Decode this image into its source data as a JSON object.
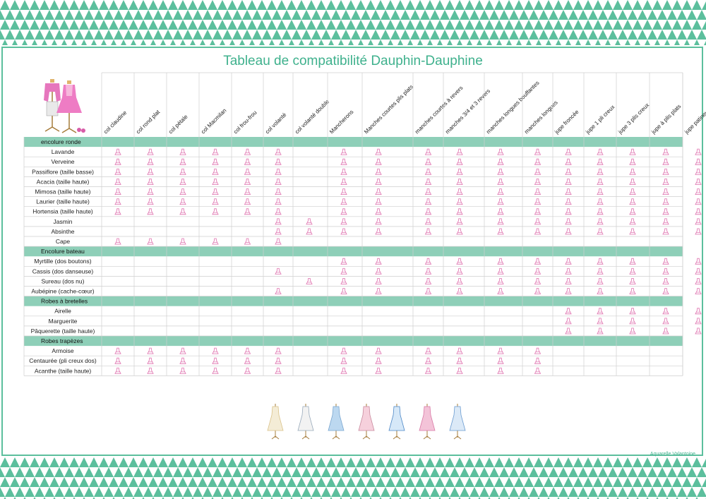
{
  "title": "Tableau de compatibilité Dauphin-Dauphine",
  "credit": "Aquarelle Valantoine",
  "colors": {
    "accent": "#5cbf9d",
    "title": "#3fb18d",
    "mark": "#e27fb6"
  },
  "columns": [
    "col claudine",
    "col rond plat",
    "col pétale",
    "col Macmilan",
    "col frou-frou",
    "col volanté",
    "col volanté double",
    "Mancherons",
    "Manches courtes plis plats",
    "manches courtes à revers",
    "manches 3/4 et 3 revers",
    "manches longues bouffantes",
    "manches longues",
    "jupe froncée",
    "jupe 1 pli creux",
    "jupe 3 plis creux",
    "jupe à plis plats",
    "jupe patineuse"
  ],
  "sections": [
    {
      "name": "encolure ronde",
      "rows": [
        {
          "label": "Lavande",
          "marks": [
            1,
            1,
            1,
            1,
            1,
            1,
            0,
            1,
            1,
            1,
            1,
            1,
            1,
            1,
            1,
            1,
            1,
            1
          ]
        },
        {
          "label": "Verveine",
          "marks": [
            1,
            1,
            1,
            1,
            1,
            1,
            0,
            1,
            1,
            1,
            1,
            1,
            1,
            1,
            1,
            1,
            1,
            1
          ]
        },
        {
          "label": "Passiflore (taille basse)",
          "marks": [
            1,
            1,
            1,
            1,
            1,
            1,
            0,
            1,
            1,
            1,
            1,
            1,
            1,
            1,
            1,
            1,
            1,
            1
          ]
        },
        {
          "label": "Acacia (taille haute)",
          "marks": [
            1,
            1,
            1,
            1,
            1,
            1,
            0,
            1,
            1,
            1,
            1,
            1,
            1,
            1,
            1,
            1,
            1,
            1
          ]
        },
        {
          "label": "Mimosa (taille haute)",
          "marks": [
            1,
            1,
            1,
            1,
            1,
            1,
            0,
            1,
            1,
            1,
            1,
            1,
            1,
            1,
            1,
            1,
            1,
            1
          ]
        },
        {
          "label": "Laurier (taille haute)",
          "marks": [
            1,
            1,
            1,
            1,
            1,
            1,
            0,
            1,
            1,
            1,
            1,
            1,
            1,
            1,
            1,
            1,
            1,
            1
          ]
        },
        {
          "label": "Hortensia (taille haute)",
          "marks": [
            1,
            1,
            1,
            1,
            1,
            1,
            0,
            1,
            1,
            1,
            1,
            1,
            1,
            1,
            1,
            1,
            1,
            1
          ]
        },
        {
          "label": "Jasmin",
          "marks": [
            0,
            0,
            0,
            0,
            0,
            1,
            1,
            1,
            1,
            1,
            1,
            1,
            1,
            1,
            1,
            1,
            1,
            1
          ]
        },
        {
          "label": "Absinthe",
          "marks": [
            0,
            0,
            0,
            0,
            0,
            1,
            1,
            1,
            1,
            1,
            1,
            1,
            1,
            1,
            1,
            1,
            1,
            1
          ]
        },
        {
          "label": "Cape",
          "marks": [
            1,
            1,
            1,
            1,
            1,
            1,
            0,
            0,
            0,
            0,
            0,
            0,
            0,
            0,
            0,
            0,
            0,
            0
          ]
        }
      ]
    },
    {
      "name": "Encolure bateau",
      "rows": [
        {
          "label": "Myrtille (dos boutons)",
          "marks": [
            0,
            0,
            0,
            0,
            0,
            0,
            0,
            1,
            1,
            1,
            1,
            1,
            1,
            1,
            1,
            1,
            1,
            1
          ]
        },
        {
          "label": "Cassis (dos danseuse)",
          "marks": [
            0,
            0,
            0,
            0,
            0,
            1,
            0,
            1,
            1,
            1,
            1,
            1,
            1,
            1,
            1,
            1,
            1,
            1
          ]
        },
        {
          "label": "Sureau (dos nu)",
          "marks": [
            0,
            0,
            0,
            0,
            0,
            0,
            1,
            1,
            1,
            1,
            1,
            1,
            1,
            1,
            1,
            1,
            1,
            1
          ]
        },
        {
          "label": "Aubépine (cache-cœur)",
          "marks": [
            0,
            0,
            0,
            0,
            0,
            1,
            0,
            1,
            1,
            1,
            1,
            1,
            1,
            1,
            1,
            1,
            1,
            1
          ]
        }
      ]
    },
    {
      "name": "Robes à bretelles",
      "rows": [
        {
          "label": "Airelle",
          "marks": [
            0,
            0,
            0,
            0,
            0,
            0,
            0,
            0,
            0,
            0,
            0,
            0,
            0,
            1,
            1,
            1,
            1,
            1
          ]
        },
        {
          "label": "Marguerite",
          "marks": [
            0,
            0,
            0,
            0,
            0,
            0,
            0,
            0,
            0,
            0,
            0,
            0,
            0,
            1,
            1,
            1,
            1,
            1
          ]
        },
        {
          "label": "Pâquerette (taille haute)",
          "marks": [
            0,
            0,
            0,
            0,
            0,
            0,
            0,
            0,
            0,
            0,
            0,
            0,
            0,
            1,
            1,
            1,
            1,
            1
          ]
        }
      ]
    },
    {
      "name": "Robes trapèzes",
      "rows": [
        {
          "label": "Armoise",
          "marks": [
            1,
            1,
            1,
            1,
            1,
            1,
            0,
            1,
            1,
            1,
            1,
            1,
            1,
            0,
            0,
            0,
            0,
            0
          ]
        },
        {
          "label": "Centaurée (pli creux dos)",
          "marks": [
            1,
            1,
            1,
            1,
            1,
            1,
            0,
            1,
            1,
            1,
            1,
            1,
            1,
            0,
            0,
            0,
            0,
            0
          ]
        },
        {
          "label": "Acanthe (taille haute)",
          "marks": [
            1,
            1,
            1,
            1,
            1,
            1,
            0,
            1,
            1,
            1,
            1,
            1,
            1,
            0,
            0,
            0,
            0,
            0
          ]
        }
      ]
    }
  ],
  "footer_dresses": [
    "dress-cream",
    "dress-white",
    "dress-blue",
    "dress-pink-white",
    "dress-blue-white",
    "dress-pink",
    "dress-blue-floral"
  ]
}
